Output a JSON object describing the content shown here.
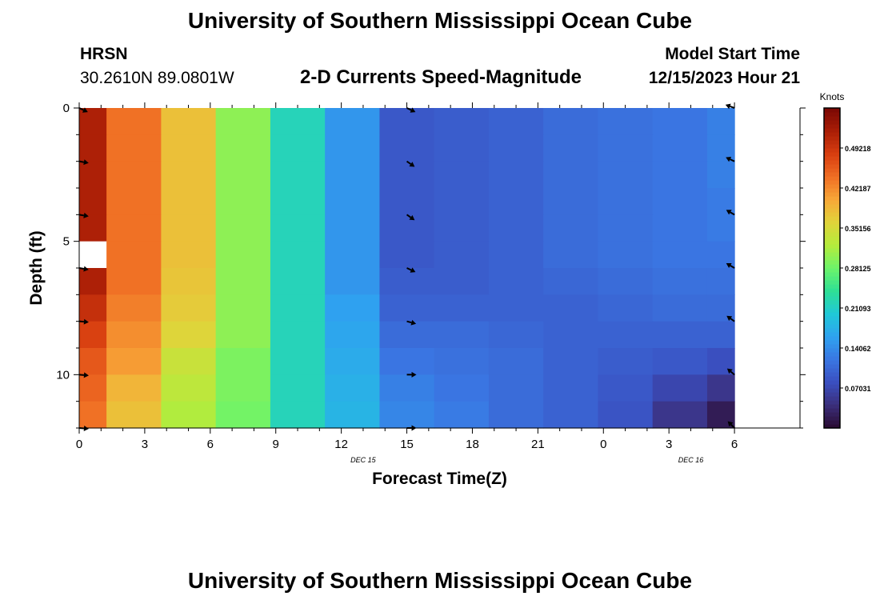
{
  "header": {
    "title": "University of Southern Mississippi Ocean Cube",
    "station_name": "HRSN",
    "station_coords": "30.2610N  89.0801W",
    "plot_title": "2-D Currents Speed-Magnitude",
    "model_start_label": "Model Start Time",
    "model_start_value": "12/15/2023 Hour 21"
  },
  "footer": {
    "title": "University of Southern Mississippi Ocean Cube"
  },
  "chart_data": {
    "type": "heatmap",
    "title": "2-D Currents Speed-Magnitude",
    "xlabel": "Forecast Time(Z)",
    "ylabel": "Depth (ft)",
    "x_hours_range": [
      0,
      33
    ],
    "x_ticks": [
      {
        "hour": 0,
        "label": "0"
      },
      {
        "hour": 3,
        "label": "3"
      },
      {
        "hour": 6,
        "label": "6"
      },
      {
        "hour": 9,
        "label": "9"
      },
      {
        "hour": 12,
        "label": "12"
      },
      {
        "hour": 15,
        "label": "15"
      },
      {
        "hour": 18,
        "label": "18"
      },
      {
        "hour": 21,
        "label": "21"
      },
      {
        "hour": 24,
        "label": "0"
      },
      {
        "hour": 27,
        "label": "3"
      },
      {
        "hour": 30,
        "label": "6"
      }
    ],
    "date_labels": [
      {
        "hour": 13,
        "label": "DEC 15"
      },
      {
        "hour": 28,
        "label": "DEC 16"
      }
    ],
    "y_range_ft": [
      0,
      12
    ],
    "y_ticks": [
      0,
      5,
      10
    ],
    "time_bins": [
      [
        0,
        1.25
      ],
      [
        1.25,
        3.75
      ],
      [
        3.75,
        6.25
      ],
      [
        6.25,
        8.75
      ],
      [
        8.75,
        11.25
      ],
      [
        11.25,
        13.75
      ],
      [
        13.75,
        16.25
      ],
      [
        16.25,
        18.75
      ],
      [
        18.75,
        21.25
      ],
      [
        21.25,
        23.75
      ],
      [
        23.75,
        26.25
      ],
      [
        26.25,
        28.75
      ],
      [
        28.75,
        30
      ]
    ],
    "depth_bins_ft": [
      0,
      1,
      2,
      3,
      4,
      5,
      6,
      7,
      8,
      9,
      10,
      11,
      12
    ],
    "speed_knots": [
      [
        0.52,
        0.44,
        0.38,
        0.3,
        0.22,
        0.15,
        0.09,
        0.095,
        0.1,
        0.11,
        0.115,
        0.12,
        0.13
      ],
      [
        0.52,
        0.44,
        0.38,
        0.3,
        0.22,
        0.15,
        0.09,
        0.095,
        0.1,
        0.11,
        0.115,
        0.12,
        0.13
      ],
      [
        0.52,
        0.44,
        0.38,
        0.3,
        0.22,
        0.15,
        0.09,
        0.095,
        0.1,
        0.11,
        0.115,
        0.12,
        0.13
      ],
      [
        0.52,
        0.44,
        0.38,
        0.3,
        0.22,
        0.15,
        0.09,
        0.095,
        0.1,
        0.11,
        0.115,
        0.12,
        0.125
      ],
      [
        0.52,
        0.44,
        0.38,
        0.3,
        0.22,
        0.15,
        0.09,
        0.095,
        0.1,
        0.11,
        0.115,
        0.12,
        0.125
      ],
      [
        null,
        0.44,
        0.38,
        0.3,
        0.22,
        0.15,
        0.09,
        0.095,
        0.1,
        0.11,
        0.115,
        0.12,
        0.12
      ],
      [
        0.52,
        0.44,
        0.375,
        0.3,
        0.22,
        0.15,
        0.095,
        0.095,
        0.1,
        0.105,
        0.11,
        0.115,
        0.115
      ],
      [
        0.5,
        0.43,
        0.37,
        0.3,
        0.22,
        0.16,
        0.1,
        0.1,
        0.1,
        0.1,
        0.105,
        0.11,
        0.11
      ],
      [
        0.48,
        0.42,
        0.36,
        0.3,
        0.22,
        0.165,
        0.11,
        0.11,
        0.105,
        0.1,
        0.1,
        0.1,
        0.1
      ],
      [
        0.46,
        0.41,
        0.34,
        0.29,
        0.22,
        0.17,
        0.12,
        0.115,
        0.11,
        0.1,
        0.095,
        0.09,
        0.08
      ],
      [
        0.45,
        0.39,
        0.33,
        0.29,
        0.22,
        0.175,
        0.13,
        0.12,
        0.11,
        0.1,
        0.09,
        0.07,
        0.05
      ],
      [
        0.44,
        0.38,
        0.32,
        0.285,
        0.22,
        0.18,
        0.135,
        0.125,
        0.11,
        0.1,
        0.085,
        0.05,
        0.02
      ]
    ],
    "vectors": {
      "times": [
        0,
        15,
        30
      ],
      "depths_ft": [
        0,
        2,
        4,
        6,
        8,
        10,
        12
      ],
      "angles_deg": [
        [
          25,
          25,
          200
        ],
        [
          10,
          35,
          205
        ],
        [
          10,
          35,
          210
        ],
        [
          10,
          25,
          210
        ],
        [
          5,
          15,
          215
        ],
        [
          5,
          0,
          220
        ],
        [
          5,
          0,
          225
        ]
      ]
    },
    "colorbar": {
      "label": "Knots",
      "range": [
        0,
        0.5625
      ],
      "tick_values": [
        0.07031,
        0.14062,
        0.21093,
        0.28125,
        0.35156,
        0.42187,
        0.49218
      ],
      "tick_labels": [
        "0.07031",
        "0.14062",
        "0.21093",
        "0.28125",
        "0.35156",
        "0.42187",
        "0.49218"
      ]
    },
    "colormap": [
      "#2a0a30",
      "#3b2e7a",
      "#3a4fc0",
      "#3a76e2",
      "#2fa2f0",
      "#20c8d8",
      "#2edf96",
      "#6cf46a",
      "#b4ec3c",
      "#e0d43a",
      "#f8a838",
      "#f06e24",
      "#d83e10",
      "#aa1e06",
      "#7a0804"
    ]
  }
}
